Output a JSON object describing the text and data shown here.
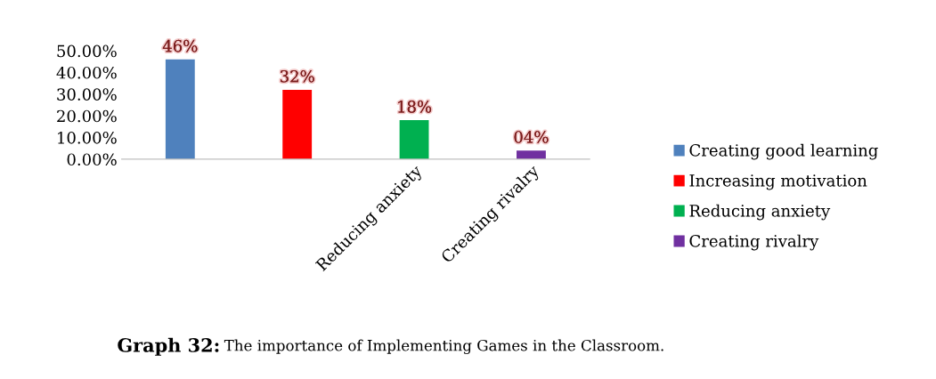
{
  "chart_data": {
    "type": "bar",
    "title": "Graph 32: The importance of Implementing Games in the Classroom.",
    "categories": [
      null,
      null,
      "Reducing anxiety",
      "Creating rivalry"
    ],
    "series": [
      {
        "name": "Creating good learning",
        "color": "#4f81bd",
        "values": [
          46,
          null,
          null,
          null
        ],
        "value_labels": [
          "46%",
          null,
          null,
          null
        ]
      },
      {
        "name": "Increasing motivation",
        "color": "#ff0000",
        "values": [
          null,
          32,
          null,
          null
        ],
        "value_labels": [
          null,
          "32%",
          null,
          null
        ]
      },
      {
        "name": "Reducing anxiety",
        "color": "#00b050",
        "values": [
          null,
          null,
          18,
          null
        ],
        "value_labels": [
          null,
          null,
          "18%",
          null
        ]
      },
      {
        "name": "Creating rivalry",
        "color": "#7030a0",
        "values": [
          null,
          null,
          null,
          4
        ],
        "value_labels": [
          null,
          null,
          null,
          "04%"
        ]
      }
    ],
    "ylim": [
      0,
      50
    ],
    "yticks": [
      {
        "value": 0,
        "label": "0.00%"
      },
      {
        "value": 10,
        "label": "10.00%"
      },
      {
        "value": 20,
        "label": "20.00%"
      },
      {
        "value": 30,
        "label": "30.00%"
      },
      {
        "value": 40,
        "label": "40.00%"
      },
      {
        "value": 50,
        "label": "50.00%"
      }
    ],
    "grid": false,
    "legend": "right"
  }
}
